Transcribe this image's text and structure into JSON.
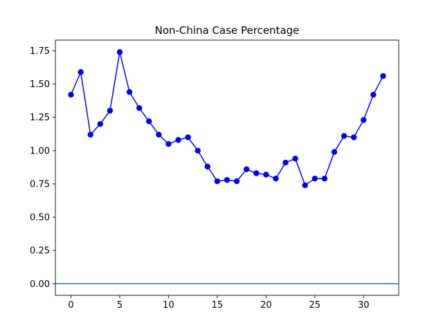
{
  "chart_data": {
    "type": "line",
    "title": "Non-China Case Percentage",
    "xlabel": "",
    "ylabel": "",
    "x": [
      0,
      1,
      2,
      3,
      4,
      5,
      6,
      7,
      8,
      9,
      10,
      11,
      12,
      13,
      14,
      15,
      16,
      17,
      18,
      19,
      20,
      21,
      22,
      23,
      24,
      25,
      26,
      27,
      28,
      29,
      30,
      31,
      32
    ],
    "series": [
      {
        "color": "#0000ff",
        "marker": "circle",
        "values": [
          1.42,
          1.59,
          1.12,
          1.2,
          1.3,
          1.74,
          1.44,
          1.32,
          1.22,
          1.12,
          1.05,
          1.08,
          1.1,
          1.0,
          0.88,
          0.77,
          0.78,
          0.77,
          0.86,
          0.83,
          0.82,
          0.79,
          0.91,
          0.94,
          0.74,
          0.79,
          0.79,
          0.99,
          1.11,
          1.1,
          1.23,
          1.42,
          1.56
        ]
      }
    ],
    "reference_line": {
      "y": 0.0,
      "color": "#1f77b4"
    },
    "xlim": [
      -1.6,
      33.6
    ],
    "ylim": [
      -0.087,
      1.83
    ],
    "xticks": [
      0,
      5,
      10,
      15,
      20,
      25,
      30
    ],
    "xtick_labels": [
      "0",
      "5",
      "10",
      "15",
      "20",
      "25",
      "30"
    ],
    "yticks": [
      0.0,
      0.25,
      0.5,
      0.75,
      1.0,
      1.25,
      1.5,
      1.75
    ],
    "ytick_labels": [
      "0.00",
      "0.25",
      "0.50",
      "0.75",
      "1.00",
      "1.25",
      "1.50",
      "1.75"
    ],
    "grid": false,
    "legend": false
  }
}
